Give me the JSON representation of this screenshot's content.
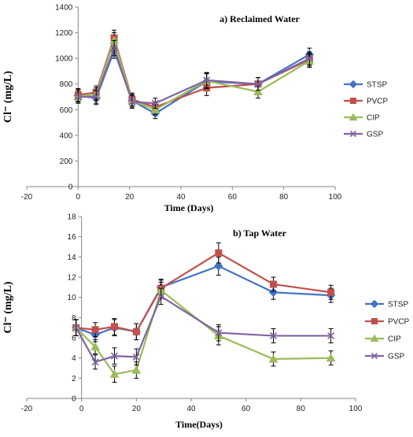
{
  "chart_data": [
    {
      "type": "line",
      "title": "a) Reclaimed Water",
      "xlabel": "Time (Days)",
      "ylabel": "Cl⁻ (mg/L)",
      "xlim": [
        -20,
        100
      ],
      "ylim": [
        0,
        1400
      ],
      "xticks": [
        -20,
        0,
        20,
        40,
        60,
        80,
        100
      ],
      "yticks": [
        0,
        200,
        400,
        600,
        800,
        1000,
        1200,
        1400
      ],
      "grid": false,
      "legend": "right",
      "x": [
        0,
        7,
        14,
        21,
        30,
        50,
        70,
        90
      ],
      "series": [
        {
          "name": "STSP",
          "color": "#4472C4",
          "marker": "diamond",
          "values": [
            710,
            690,
            1060,
            670,
            570,
            820,
            800,
            1030
          ],
          "errors": [
            50,
            50,
            60,
            50,
            40,
            60,
            50,
            50
          ]
        },
        {
          "name": "PVCP",
          "color": "#C0504D",
          "marker": "square",
          "values": [
            715,
            735,
            1160,
            680,
            620,
            770,
            800,
            990
          ],
          "errors": [
            50,
            50,
            60,
            50,
            40,
            60,
            50,
            50
          ]
        },
        {
          "name": "CIP",
          "color": "#9BBB59",
          "marker": "triangle",
          "values": [
            700,
            720,
            1140,
            670,
            600,
            825,
            740,
            980
          ],
          "errors": [
            50,
            50,
            60,
            50,
            40,
            60,
            50,
            50
          ]
        },
        {
          "name": "GSP",
          "color": "#8064A2",
          "marker": "x",
          "values": [
            700,
            700,
            1080,
            660,
            650,
            830,
            800,
            1000
          ],
          "errors": [
            50,
            50,
            60,
            50,
            40,
            60,
            50,
            50
          ]
        }
      ]
    },
    {
      "type": "line",
      "title": "b) Tap Water",
      "xlabel": "Time(Days)",
      "ylabel": "Cl⁻ (mg/L)",
      "xlim": [
        -20,
        100
      ],
      "ylim": [
        0,
        18
      ],
      "xticks": [
        -20,
        0,
        20,
        40,
        60,
        80,
        100
      ],
      "yticks": [
        0,
        2,
        4,
        6,
        8,
        10,
        12,
        14,
        16,
        18
      ],
      "grid": false,
      "legend": "right",
      "x": [
        -2,
        5,
        12,
        20,
        29,
        50,
        70,
        91
      ],
      "series": [
        {
          "name": "STSP",
          "color": "#4472C4",
          "marker": "diamond",
          "values": [
            7.0,
            6.3,
            7.0,
            6.6,
            11.0,
            13.1,
            10.5,
            10.2
          ],
          "errors": [
            0.8,
            0.7,
            0.8,
            0.8,
            0.8,
            0.9,
            0.7,
            0.7
          ]
        },
        {
          "name": "PVCP",
          "color": "#C0504D",
          "marker": "square",
          "values": [
            7.0,
            6.8,
            7.1,
            6.6,
            10.9,
            14.4,
            11.3,
            10.5
          ],
          "errors": [
            0.8,
            0.7,
            0.8,
            0.8,
            0.8,
            1.0,
            0.7,
            0.7
          ]
        },
        {
          "name": "CIP",
          "color": "#9BBB59",
          "marker": "triangle",
          "values": [
            7.0,
            5.1,
            2.4,
            2.8,
            10.7,
            6.2,
            3.9,
            4.0
          ],
          "errors": [
            0.8,
            0.7,
            0.8,
            0.8,
            0.8,
            0.9,
            0.7,
            0.7
          ]
        },
        {
          "name": "GSP",
          "color": "#8064A2",
          "marker": "x",
          "values": [
            7.0,
            3.6,
            4.2,
            4.1,
            10.1,
            6.5,
            6.2,
            6.2
          ],
          "errors": [
            0.8,
            0.7,
            0.8,
            0.8,
            0.8,
            0.8,
            0.7,
            0.7
          ]
        }
      ]
    }
  ]
}
